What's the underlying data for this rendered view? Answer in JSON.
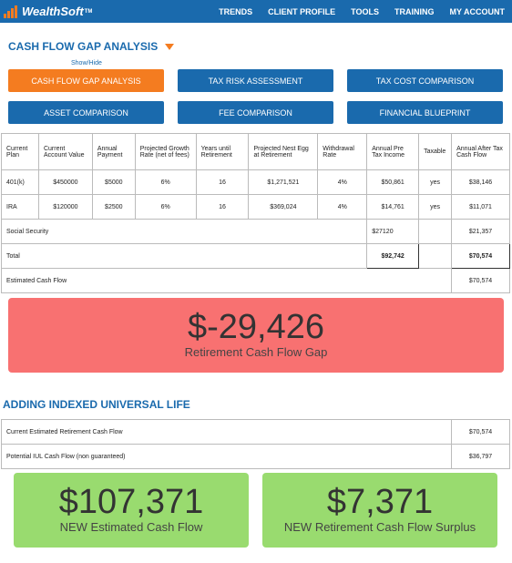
{
  "header": {
    "brand": "WealthSoft",
    "tm": "TM",
    "nav": [
      "TRENDS",
      "CLIENT PROFILE",
      "TOOLS",
      "TRAINING",
      "MY ACCOUNT"
    ]
  },
  "section": {
    "title": "CASH FLOW GAP ANALYSIS",
    "show_hide": "Show/Hide"
  },
  "buttons": [
    "CASH FLOW GAP ANALYSIS",
    "TAX RISK ASSESSMENT",
    "TAX COST COMPARISON",
    "ASSET COMPARISON",
    "FEE COMPARISON",
    "FINANCIAL BLUEPRINT"
  ],
  "table": {
    "headers": [
      "Current Plan",
      "Current Account Value",
      "Annual Payment",
      "Projected Growth Rate (net of fees)",
      "Years until Retirement",
      "Projected Nest Egg at Retirement",
      "Withdrawal Rate",
      "Annual Pre Tax Income",
      "Taxable",
      "Annual After Tax Cash Flow"
    ],
    "rows": [
      [
        "401(k)",
        "$450000",
        "$5000",
        "6%",
        "16",
        "$1,271,521",
        "4%",
        "$50,861",
        "yes",
        "$38,146"
      ],
      [
        "IRA",
        "$120000",
        "$2500",
        "6%",
        "16",
        "$369,024",
        "4%",
        "$14,761",
        "yes",
        "$11,071"
      ]
    ],
    "social_security": {
      "label": "Social Security",
      "pre_tax": "$27120",
      "after_tax": "$21,357"
    },
    "total": {
      "label": "Total",
      "pre_tax": "$92,742",
      "after_tax": "$70,574"
    },
    "estimated": {
      "label": "Estimated Cash Flow",
      "value": "$70,574"
    }
  },
  "gap": {
    "value": "$-29,426",
    "label": "Retirement Cash Flow Gap",
    "color": "#f87171"
  },
  "iul": {
    "title": "ADDING INDEXED UNIVERSAL LIFE",
    "rows": [
      {
        "label": "Current Estimated Retirement Cash Flow",
        "value": "$70,574"
      },
      {
        "label": "Potential IUL Cash Flow (non guaranteed)",
        "value": "$36,797"
      }
    ]
  },
  "results": [
    {
      "value": "$107,371",
      "label": "NEW Estimated Cash Flow"
    },
    {
      "value": "$7,371",
      "label": "NEW Retirement Cash Flow Surplus"
    }
  ],
  "colors": {
    "brand": "#1a6aad",
    "accent": "#f47c20",
    "positive": "#99db6f"
  }
}
